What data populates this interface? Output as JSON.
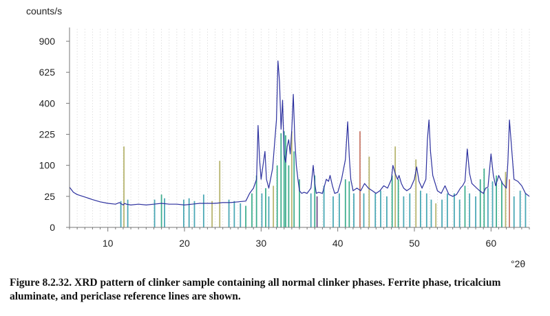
{
  "chart_data": {
    "type": "line",
    "ylabel": "counts/s",
    "xlabel": "°2θ",
    "xlim": [
      5,
      65
    ],
    "y_scale": "sqrt",
    "ylim": [
      0,
      1024
    ],
    "x_ticks": [
      10,
      20,
      30,
      40,
      50,
      60
    ],
    "y_ticks": [
      0,
      25,
      100,
      225,
      400,
      625,
      900
    ],
    "grid": "vertical dashed",
    "series": [
      {
        "color": "#2b2f9e",
        "x": [
          5.0,
          5.5,
          6.0,
          7.0,
          8.0,
          9.0,
          10.0,
          11.0,
          11.5,
          12.0,
          12.2,
          12.4,
          13.0,
          14.0,
          15.0,
          16.0,
          17.0,
          18.0,
          19.0,
          20.0,
          21.0,
          22.0,
          23.0,
          24.0,
          25.0,
          26.0,
          27.0,
          28.0,
          28.5,
          29.0,
          29.4,
          29.6,
          29.8,
          30.0,
          30.3,
          30.5,
          30.7,
          31.0,
          31.5,
          32.0,
          32.2,
          32.4,
          32.6,
          32.8,
          33.0,
          33.2,
          33.4,
          33.6,
          33.8,
          34.0,
          34.2,
          34.4,
          34.6,
          34.8,
          35.0,
          35.3,
          35.6,
          36.0,
          36.5,
          36.8,
          37.0,
          37.2,
          37.5,
          38.0,
          38.5,
          38.8,
          39.0,
          39.3,
          39.6,
          40.0,
          40.5,
          41.0,
          41.3,
          41.5,
          41.7,
          42.0,
          42.5,
          43.0,
          43.5,
          44.0,
          44.5,
          45.0,
          45.5,
          46.0,
          46.5,
          47.0,
          47.2,
          47.5,
          47.8,
          48.0,
          48.3,
          48.6,
          49.0,
          49.5,
          50.0,
          50.3,
          50.6,
          51.0,
          51.5,
          51.7,
          51.9,
          52.1,
          52.4,
          53.0,
          53.5,
          54.0,
          54.5,
          55.0,
          55.5,
          56.0,
          56.3,
          56.6,
          56.9,
          57.2,
          57.5,
          58.0,
          58.5,
          59.0,
          59.3,
          59.6,
          60.0,
          60.3,
          60.6,
          61.0,
          61.5,
          62.0,
          62.2,
          62.4,
          62.6,
          62.8,
          63.0,
          63.5,
          64.0,
          64.5,
          65.0
        ],
        "y": [
          42,
          32,
          28,
          24,
          20,
          17,
          15,
          14,
          16,
          13,
          15,
          14,
          13,
          14,
          13,
          14,
          15,
          14,
          14,
          13,
          14,
          15,
          15,
          15,
          16,
          16,
          17,
          18,
          30,
          40,
          60,
          270,
          120,
          60,
          110,
          150,
          60,
          40,
          90,
          300,
          720,
          550,
          250,
          420,
          140,
          110,
          170,
          200,
          140,
          250,
          460,
          200,
          100,
          60,
          35,
          30,
          32,
          30,
          40,
          100,
          50,
          30,
          32,
          30,
          60,
          55,
          70,
          45,
          30,
          32,
          60,
          120,
          290,
          130,
          60,
          35,
          40,
          35,
          50,
          40,
          35,
          30,
          35,
          45,
          40,
          60,
          100,
          75,
          60,
          70,
          50,
          40,
          35,
          40,
          60,
          95,
          55,
          40,
          60,
          200,
          300,
          150,
          70,
          35,
          30,
          45,
          28,
          25,
          28,
          40,
          45,
          55,
          160,
          75,
          50,
          42,
          35,
          30,
          40,
          42,
          140,
          70,
          45,
          70,
          50,
          40,
          110,
          300,
          200,
          120,
          60,
          55,
          45,
          30,
          25
        ]
      }
    ],
    "reference_lines": [
      {
        "x": 12.1,
        "y": 170,
        "color": "#b7b56f"
      },
      {
        "x": 11.7,
        "y": 18,
        "color": "#4aa8b5"
      },
      {
        "x": 12.6,
        "y": 20,
        "color": "#4aa8b5"
      },
      {
        "x": 16.1,
        "y": 20,
        "color": "#4aa8b5"
      },
      {
        "x": 17.0,
        "y": 28,
        "color": "#3fae8e"
      },
      {
        "x": 17.4,
        "y": 22,
        "color": "#4aa8b5"
      },
      {
        "x": 19.9,
        "y": 20,
        "color": "#4aa8b5"
      },
      {
        "x": 20.6,
        "y": 22,
        "color": "#4aa8b5"
      },
      {
        "x": 21.3,
        "y": 18,
        "color": "#4aa8b5"
      },
      {
        "x": 22.5,
        "y": 28,
        "color": "#4aa8b5"
      },
      {
        "x": 23.6,
        "y": 18,
        "color": "#b7b56f"
      },
      {
        "x": 24.6,
        "y": 115,
        "color": "#b7b56f"
      },
      {
        "x": 25.8,
        "y": 20,
        "color": "#4aa8b5"
      },
      {
        "x": 26.5,
        "y": 18,
        "color": "#4aa8b5"
      },
      {
        "x": 27.3,
        "y": 15,
        "color": "#4aa8b5"
      },
      {
        "x": 28.0,
        "y": 12,
        "color": "#3fae8e"
      },
      {
        "x": 28.8,
        "y": 30,
        "color": "#3fae8e"
      },
      {
        "x": 29.4,
        "y": 70,
        "color": "#3fae8e"
      },
      {
        "x": 30.1,
        "y": 30,
        "color": "#4aa8b5"
      },
      {
        "x": 30.6,
        "y": 40,
        "color": "#3fae8e"
      },
      {
        "x": 31.0,
        "y": 25,
        "color": "#4aa8b5"
      },
      {
        "x": 31.6,
        "y": 45,
        "color": "#b7b56f"
      },
      {
        "x": 32.1,
        "y": 100,
        "color": "#3fae8e"
      },
      {
        "x": 32.6,
        "y": 230,
        "color": "#3fae8e"
      },
      {
        "x": 33.0,
        "y": 240,
        "color": "#3fae8e"
      },
      {
        "x": 33.2,
        "y": 220,
        "color": "#3fae8e"
      },
      {
        "x": 33.6,
        "y": 100,
        "color": "#3fae8e"
      },
      {
        "x": 34.0,
        "y": 240,
        "color": "#b7b56f"
      },
      {
        "x": 34.3,
        "y": 150,
        "color": "#3fae8e"
      },
      {
        "x": 35.0,
        "y": 60,
        "color": "#3fae8e"
      },
      {
        "x": 36.5,
        "y": 30,
        "color": "#4aa8b5"
      },
      {
        "x": 37.0,
        "y": 70,
        "color": "#3fae8e"
      },
      {
        "x": 37.3,
        "y": 25,
        "color": "#6b4a8a"
      },
      {
        "x": 38.2,
        "y": 45,
        "color": "#4aa8b5"
      },
      {
        "x": 39.4,
        "y": 25,
        "color": "#4aa8b5"
      },
      {
        "x": 40.2,
        "y": 30,
        "color": "#4aa8b5"
      },
      {
        "x": 41.0,
        "y": 60,
        "color": "#3fae8e"
      },
      {
        "x": 41.5,
        "y": 55,
        "color": "#3fae8e"
      },
      {
        "x": 42.1,
        "y": 30,
        "color": "#4aa8b5"
      },
      {
        "x": 42.9,
        "y": 240,
        "color": "#c97a6a"
      },
      {
        "x": 43.4,
        "y": 30,
        "color": "#4aa8b5"
      },
      {
        "x": 44.1,
        "y": 130,
        "color": "#b7b56f"
      },
      {
        "x": 44.9,
        "y": 30,
        "color": "#4aa8b5"
      },
      {
        "x": 45.6,
        "y": 35,
        "color": "#4aa8b5"
      },
      {
        "x": 46.4,
        "y": 25,
        "color": "#4aa8b5"
      },
      {
        "x": 47.1,
        "y": 70,
        "color": "#3fae8e"
      },
      {
        "x": 47.5,
        "y": 170,
        "color": "#b7b56f"
      },
      {
        "x": 47.9,
        "y": 60,
        "color": "#3fae8e"
      },
      {
        "x": 48.6,
        "y": 25,
        "color": "#4aa8b5"
      },
      {
        "x": 49.4,
        "y": 30,
        "color": "#4aa8b5"
      },
      {
        "x": 50.2,
        "y": 120,
        "color": "#b7b56f"
      },
      {
        "x": 50.8,
        "y": 35,
        "color": "#4aa8b5"
      },
      {
        "x": 51.6,
        "y": 30,
        "color": "#4aa8b5"
      },
      {
        "x": 52.2,
        "y": 20,
        "color": "#4aa8b5"
      },
      {
        "x": 52.8,
        "y": 15,
        "color": "#b7b56f"
      },
      {
        "x": 53.6,
        "y": 20,
        "color": "#4aa8b5"
      },
      {
        "x": 54.3,
        "y": 30,
        "color": "#4aa8b5"
      },
      {
        "x": 55.2,
        "y": 30,
        "color": "#4aa8b5"
      },
      {
        "x": 55.9,
        "y": 20,
        "color": "#4aa8b5"
      },
      {
        "x": 56.6,
        "y": 45,
        "color": "#3fae8e"
      },
      {
        "x": 57.2,
        "y": 30,
        "color": "#4aa8b5"
      },
      {
        "x": 58.0,
        "y": 25,
        "color": "#4aa8b5"
      },
      {
        "x": 58.6,
        "y": 60,
        "color": "#3fae8e"
      },
      {
        "x": 59.1,
        "y": 90,
        "color": "#3fae8e"
      },
      {
        "x": 59.6,
        "y": 40,
        "color": "#4aa8b5"
      },
      {
        "x": 60.2,
        "y": 55,
        "color": "#4aa8b5"
      },
      {
        "x": 60.7,
        "y": 70,
        "color": "#3fae8e"
      },
      {
        "x": 61.4,
        "y": 55,
        "color": "#3fae8e"
      },
      {
        "x": 61.9,
        "y": 80,
        "color": "#b7b56f"
      },
      {
        "x": 62.4,
        "y": 60,
        "color": "#c97a6a"
      },
      {
        "x": 63.0,
        "y": 25,
        "color": "#4aa8b5"
      },
      {
        "x": 63.8,
        "y": 35,
        "color": "#4aa8b5"
      },
      {
        "x": 64.5,
        "y": 30,
        "color": "#4aa8b5"
      }
    ]
  },
  "caption": "Figure 8.2.32. XRD pattern of clinker sample containing all normal clinker phases. Ferrite phase, tricalcium aluminate, and periclase reference lines are shown."
}
